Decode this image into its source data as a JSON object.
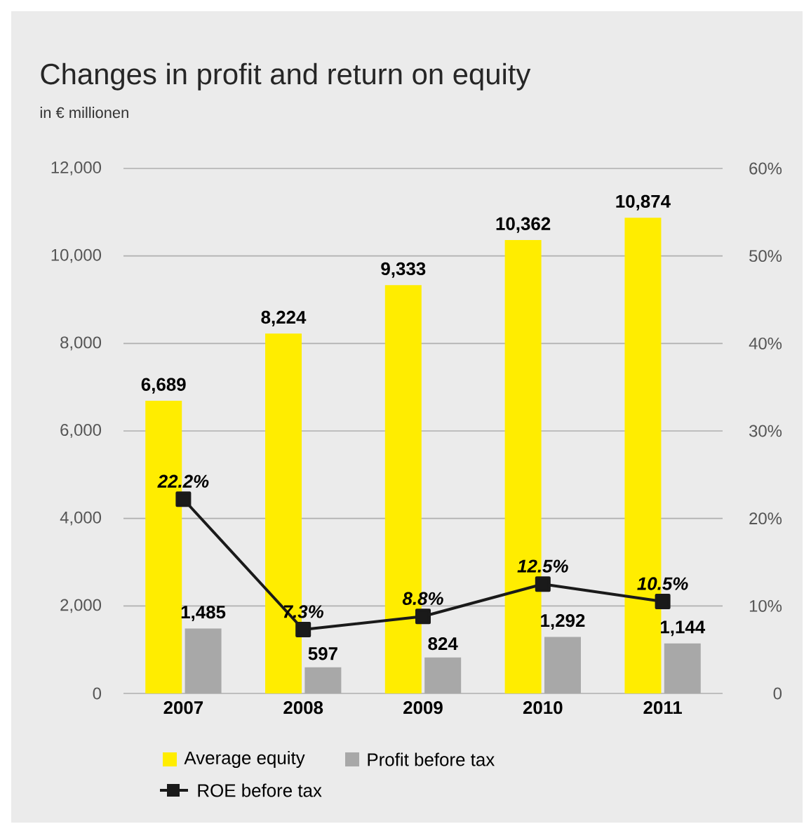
{
  "chart_data": {
    "type": "bar",
    "title": "Changes in profit and return on equity",
    "subtitle": "in € millionen",
    "categories": [
      "2007",
      "2008",
      "2009",
      "2010",
      "2011"
    ],
    "series": [
      {
        "name": "Average equity",
        "color": "#ffed00",
        "values": [
          6689,
          8224,
          9333,
          10362,
          10874
        ],
        "value_labels": [
          "6,689",
          "8,224",
          "9,333",
          "10,362",
          "10,874"
        ]
      },
      {
        "name": "Profit before tax",
        "color": "#a8a8a8",
        "values": [
          1485,
          597,
          824,
          1292,
          1144
        ],
        "value_labels": [
          "1,485",
          "597",
          "824",
          "1,292",
          "1,144"
        ]
      },
      {
        "name": "ROE before tax",
        "type": "line",
        "axis": "y2",
        "color": "#1a1a1a",
        "marker": "square",
        "line_style": "solid",
        "values": [
          22.2,
          7.3,
          8.8,
          12.5,
          10.5
        ],
        "value_labels": [
          "22.2%",
          "7.3%",
          "8.8%",
          "12.5%",
          "10.5%"
        ]
      }
    ],
    "ylim": [
      0,
      12000
    ],
    "yticks": [
      0,
      {
        "value": 2000,
        "label": "2,000"
      },
      {
        "value": 4000,
        "label": "4,000"
      },
      {
        "value": 6000,
        "label": "6,000"
      },
      {
        "value": 8000,
        "label": "8,000"
      },
      {
        "value": 10000,
        "label": "10,000"
      },
      {
        "value": 12000,
        "label": "12,000"
      }
    ],
    "y2lim": [
      0,
      60
    ],
    "y2ticks": [
      0,
      {
        "value": 10,
        "label": "10%"
      },
      {
        "value": 20,
        "label": "20%"
      },
      {
        "value": 30,
        "label": "30%"
      },
      {
        "value": 40,
        "label": "40%"
      },
      {
        "value": 50,
        "label": "50%"
      },
      {
        "value": 60,
        "label": "60%"
      }
    ],
    "grid": "y",
    "legend": "bottom"
  }
}
